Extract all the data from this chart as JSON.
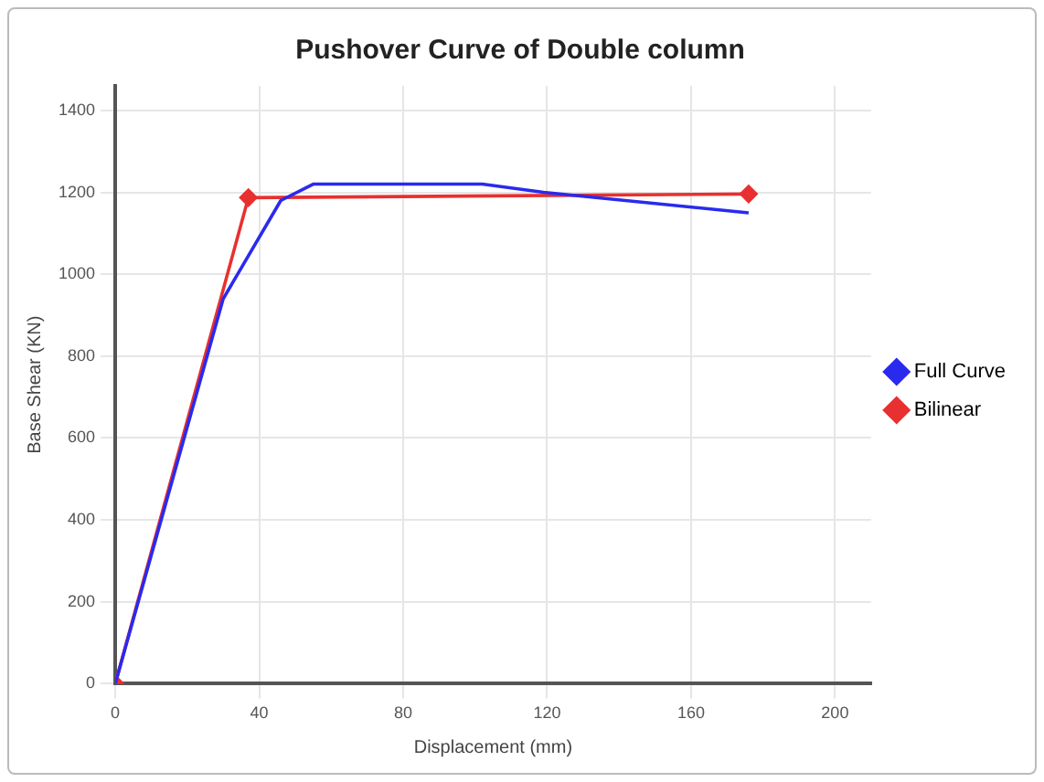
{
  "chart_data": {
    "type": "line",
    "title": "Pushover Curve of Double column",
    "xlabel": "Displacement (mm)",
    "ylabel": "Base Shear (KN)",
    "xlim": [
      0,
      210
    ],
    "xticks": [
      0,
      40,
      80,
      120,
      160,
      200
    ],
    "ylim": [
      0,
      1460
    ],
    "yticks": [
      0,
      200,
      400,
      600,
      800,
      1000,
      1200,
      1400
    ],
    "grid": true,
    "legend": "right",
    "line_style": "solid",
    "series": [
      {
        "name": "Full Curve",
        "color": "#2a2aee",
        "x": [
          0,
          30,
          46,
          55,
          102,
          119,
          176
        ],
        "values": [
          0,
          940,
          1180,
          1220,
          1220,
          1200,
          1150
        ],
        "marker": "none"
      },
      {
        "name": "Bilinear",
        "color": "#e83030",
        "x": [
          0,
          37,
          176
        ],
        "values": [
          0,
          1187,
          1196
        ],
        "marker": "diamond"
      }
    ]
  }
}
